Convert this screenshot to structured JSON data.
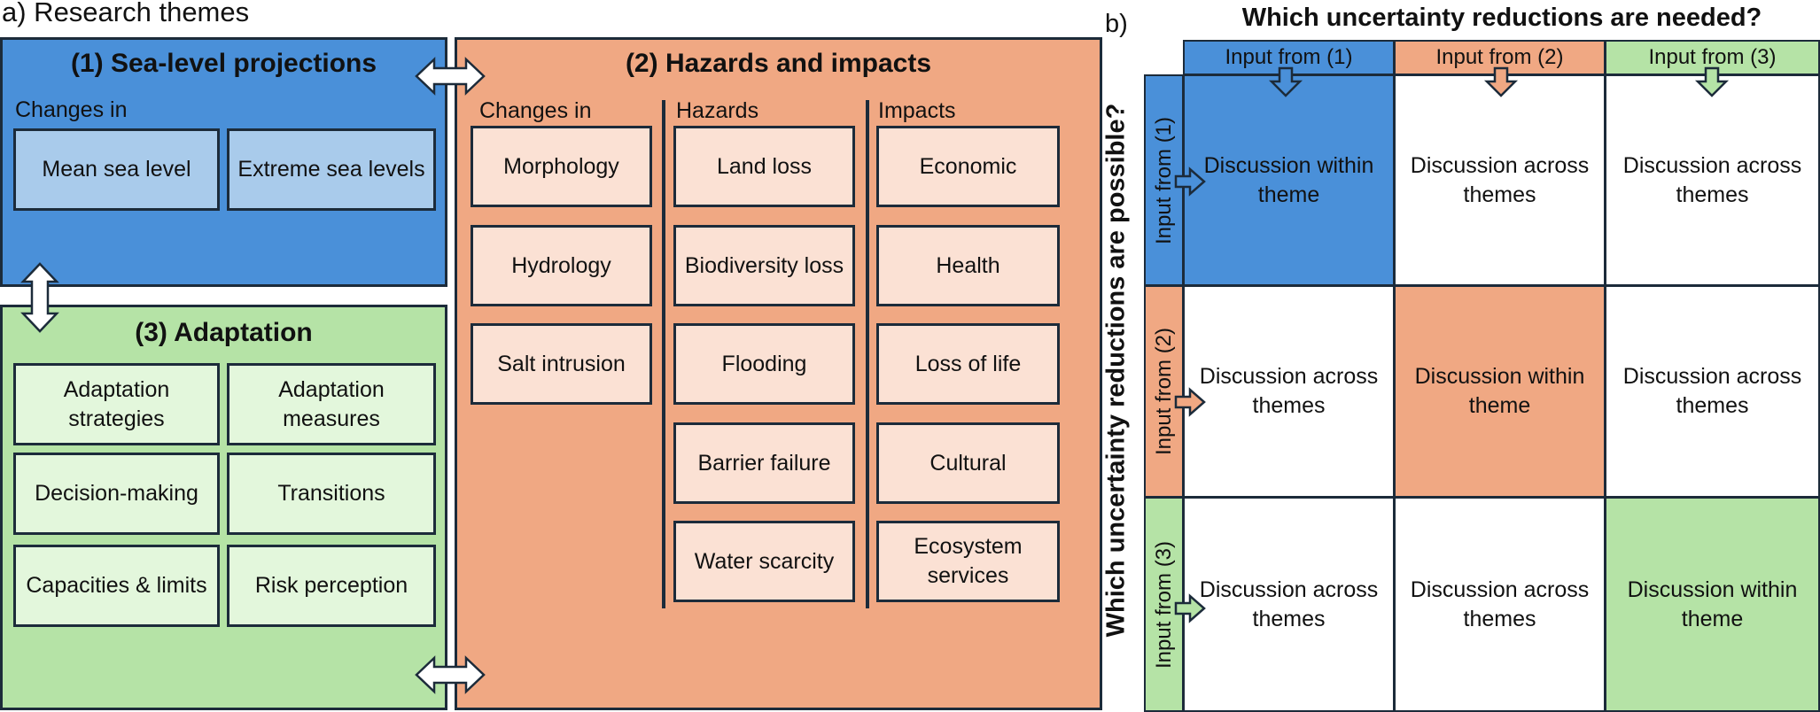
{
  "panel_a": {
    "label": "a) Research themes",
    "theme1": {
      "title": "(1) Sea-level projections",
      "subheading": "Changes in",
      "items": [
        "Mean sea level",
        "Extreme sea levels"
      ],
      "color": "#4a90d9"
    },
    "theme2": {
      "title": "(2) Hazards and impacts",
      "columns": [
        {
          "heading": "Changes in",
          "items": [
            "Morphology",
            "Hydrology",
            "Salt intrusion"
          ]
        },
        {
          "heading": "Hazards",
          "items": [
            "Land loss",
            "Biodiversity loss",
            "Flooding",
            "Barrier failure",
            "Water scarcity"
          ]
        },
        {
          "heading": "Impacts",
          "items": [
            "Economic",
            "Health",
            "Loss of life",
            "Cultural",
            "Ecosystem services"
          ]
        }
      ],
      "color": "#f0a883"
    },
    "theme3": {
      "title": "(3) Adaptation",
      "items": [
        "Adaptation strategies",
        "Adaptation measures",
        "Decision-making",
        "Transitions",
        "Capacities & limits",
        "Risk perception"
      ],
      "color": "#b5e3a6"
    }
  },
  "panel_b": {
    "label": "b)",
    "top_title": "Which uncertainty reductions are needed?",
    "side_title": "Which uncertainty reductions are possible?",
    "column_headers": [
      "Input from (1)",
      "Input from (2)",
      "Input from (3)"
    ],
    "row_headers": [
      "Input from (1)",
      "Input from (2)",
      "Input from (3)"
    ],
    "cells": [
      [
        "Discussion within theme",
        "Discussion across themes",
        "Discussion across themes"
      ],
      [
        "Discussion across themes",
        "Discussion within theme",
        "Discussion across themes"
      ],
      [
        "Discussion across themes",
        "Discussion across themes",
        "Discussion within theme"
      ]
    ],
    "colors": {
      "theme1": "#4a90d9",
      "theme2": "#f0a883",
      "theme3": "#b5e3a6"
    }
  }
}
